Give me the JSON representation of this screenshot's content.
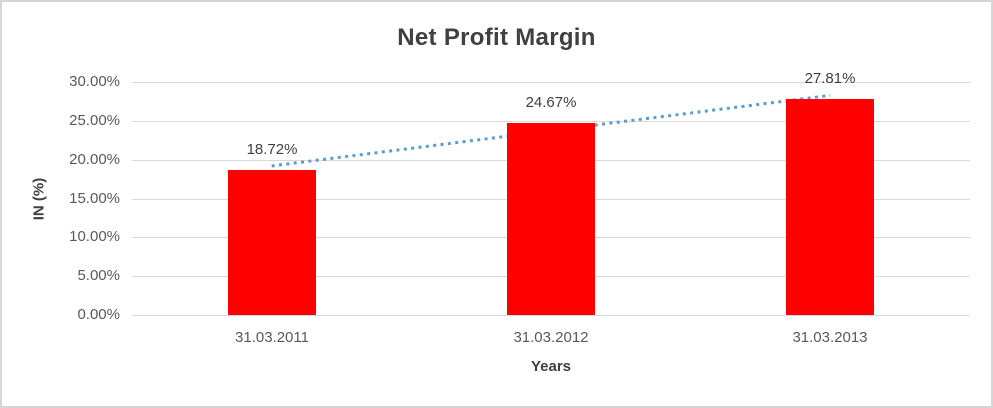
{
  "chart_data": {
    "type": "bar",
    "title": "Net Profit Margin",
    "categories": [
      "31.03.2011",
      "31.03.2012",
      "31.03.2013"
    ],
    "values": [
      18.72,
      24.67,
      27.81
    ],
    "data_labels": [
      "18.72%",
      "24.67%",
      "27.81%"
    ],
    "xlabel": "Years",
    "ylabel": "IN (%)",
    "ylim": [
      0,
      30
    ],
    "y_tick_step": 5,
    "y_tick_labels": [
      "0.00%",
      "5.00%",
      "10.00%",
      "15.00%",
      "20.00%",
      "25.00%",
      "30.00%"
    ],
    "grid": true,
    "legend": "none",
    "trendline": {
      "type": "linear",
      "style": "dotted",
      "start_value": 19.19,
      "end_value": 28.28
    },
    "colors": {
      "bar": "#ff0000",
      "trendline": "#5b9bd5",
      "gridline": "#d9d9d9",
      "title_text": "#404040",
      "tick_text": "#595959",
      "frame_border": "#d6d6d6"
    }
  }
}
